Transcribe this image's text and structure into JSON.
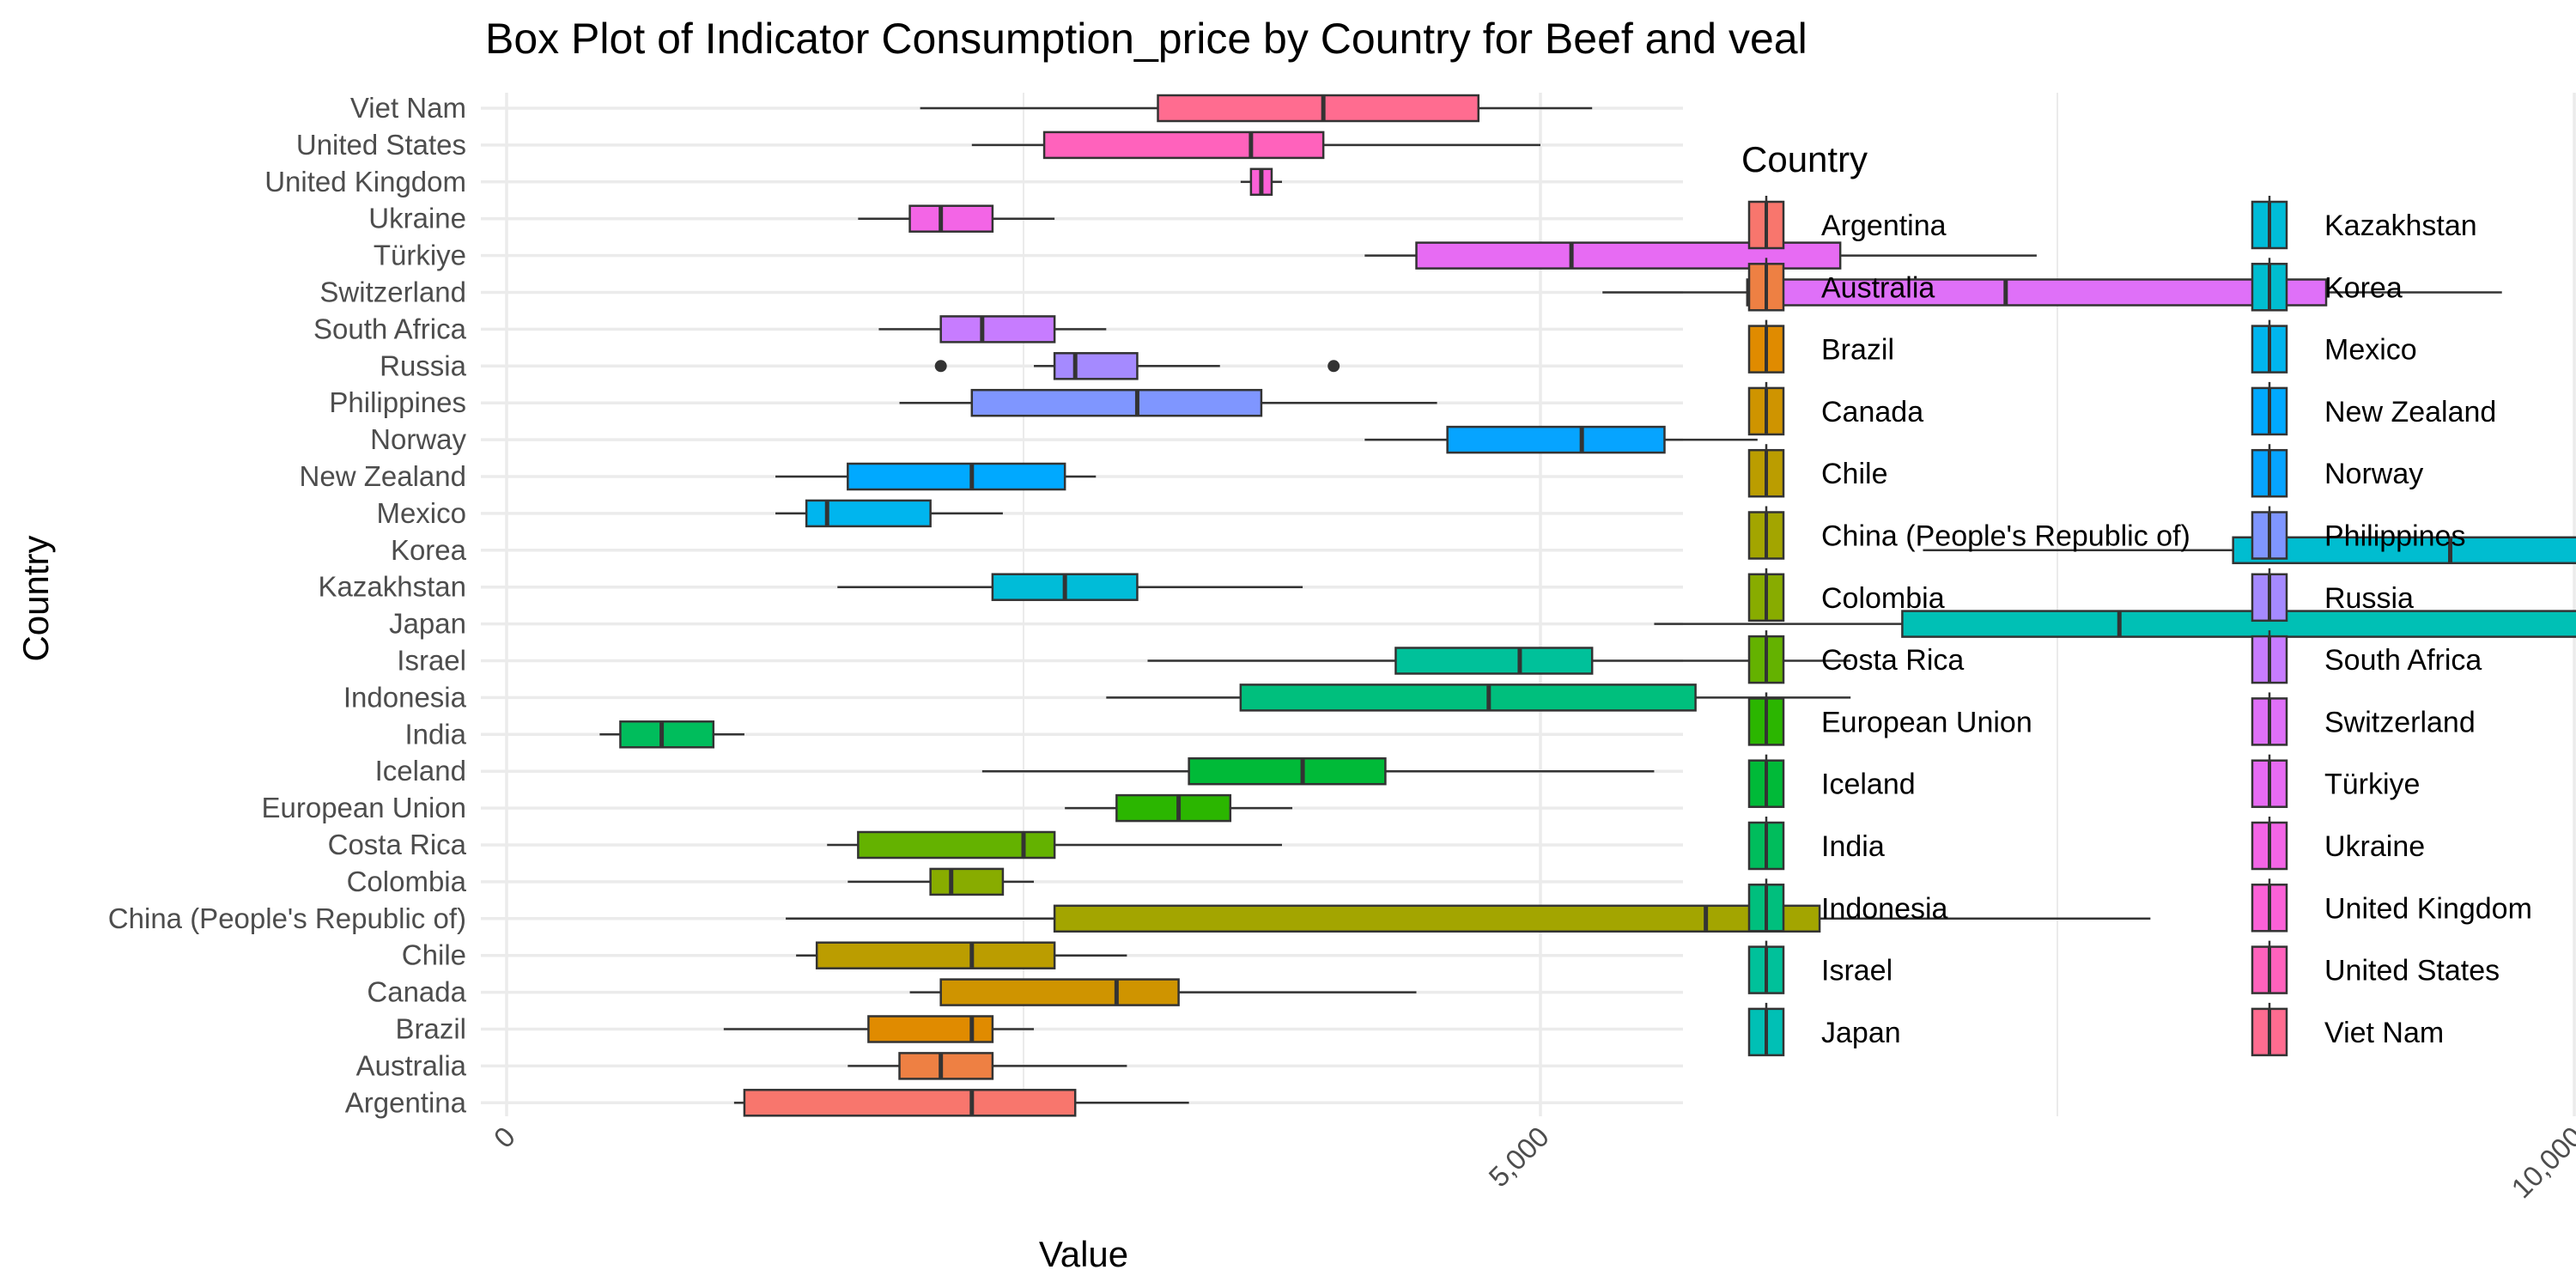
{
  "chart_data": {
    "type": "boxplot",
    "orientation": "horizontal",
    "title": "Box Plot of Indicator Consumption_price by Country for Beef and veal",
    "xlabel": "Value",
    "ylabel": "Country",
    "xlim": [
      -200,
      13800
    ],
    "x_ticks": [
      0,
      5000,
      10000
    ],
    "x_tick_labels": [
      "0",
      "5,000",
      "10,000"
    ],
    "grid": "on",
    "legend_title": "Country",
    "legend_position": "right",
    "series": [
      {
        "name": "Argentina",
        "color": "#F8766D",
        "min": 1100,
        "q1": 1150,
        "median": 2250,
        "q3": 2750,
        "max": 3300,
        "outliers": []
      },
      {
        "name": "Australia",
        "color": "#EE8043",
        "min": 1650,
        "q1": 1900,
        "median": 2100,
        "q3": 2350,
        "max": 3000,
        "outliers": []
      },
      {
        "name": "Brazil",
        "color": "#E08B00",
        "min": 1050,
        "q1": 1750,
        "median": 2250,
        "q3": 2350,
        "max": 2550,
        "outliers": []
      },
      {
        "name": "Canada",
        "color": "#CF9400",
        "min": 1950,
        "q1": 2100,
        "median": 2950,
        "q3": 3250,
        "max": 4400,
        "outliers": []
      },
      {
        "name": "Chile",
        "color": "#BB9D00",
        "min": 1400,
        "q1": 1500,
        "median": 2250,
        "q3": 2650,
        "max": 3000,
        "outliers": []
      },
      {
        "name": "China (People's Republic of)",
        "color": "#A3A500",
        "min": 1350,
        "q1": 2650,
        "median": 5800,
        "q3": 6350,
        "max": 7950,
        "outliers": []
      },
      {
        "name": "Colombia",
        "color": "#88AC00",
        "min": 1650,
        "q1": 2050,
        "median": 2150,
        "q3": 2400,
        "max": 2550,
        "outliers": []
      },
      {
        "name": "Costa Rica",
        "color": "#64B200",
        "min": 1550,
        "q1": 1700,
        "median": 2500,
        "q3": 2650,
        "max": 3750,
        "outliers": []
      },
      {
        "name": "European Union",
        "color": "#2BB600",
        "min": 2700,
        "q1": 2950,
        "median": 3250,
        "q3": 3500,
        "max": 3800,
        "outliers": []
      },
      {
        "name": "Iceland",
        "color": "#00BA38",
        "min": 2300,
        "q1": 3300,
        "median": 3850,
        "q3": 4250,
        "max": 5550,
        "outliers": []
      },
      {
        "name": "India",
        "color": "#00BD5C",
        "min": 450,
        "q1": 550,
        "median": 750,
        "q3": 1000,
        "max": 1150,
        "outliers": []
      },
      {
        "name": "Indonesia",
        "color": "#00BF7D",
        "min": 2900,
        "q1": 3550,
        "median": 4750,
        "q3": 5750,
        "max": 6500,
        "outliers": []
      },
      {
        "name": "Israel",
        "color": "#00C19A",
        "min": 3100,
        "q1": 4300,
        "median": 4900,
        "q3": 5250,
        "max": 6500,
        "outliers": []
      },
      {
        "name": "Japan",
        "color": "#00C0B5",
        "min": 5550,
        "q1": 6750,
        "median": 7800,
        "q3": 11350,
        "max": 12550,
        "outliers": []
      },
      {
        "name": "Kazakhstan",
        "color": "#00BCD8",
        "min": 1600,
        "q1": 2350,
        "median": 2700,
        "q3": 3050,
        "max": 3850,
        "outliers": []
      },
      {
        "name": "Korea",
        "color": "#00BDD0",
        "min": 6850,
        "q1": 8350,
        "median": 9400,
        "q3": 11900,
        "max": 13350,
        "outliers": []
      },
      {
        "name": "Mexico",
        "color": "#00B5EE",
        "min": 1300,
        "q1": 1450,
        "median": 1550,
        "q3": 2050,
        "max": 2400,
        "outliers": []
      },
      {
        "name": "New Zealand",
        "color": "#00A9FF",
        "min": 1300,
        "q1": 1650,
        "median": 2250,
        "q3": 2700,
        "max": 2850,
        "outliers": []
      },
      {
        "name": "Norway",
        "color": "#06A4FF",
        "min": 4150,
        "q1": 4550,
        "median": 5200,
        "q3": 5600,
        "max": 6050,
        "outliers": []
      },
      {
        "name": "Philippines",
        "color": "#7F96FF",
        "min": 1900,
        "q1": 2250,
        "median": 3050,
        "q3": 3650,
        "max": 4500,
        "outliers": []
      },
      {
        "name": "Russia",
        "color": "#A58AFF",
        "min": 2550,
        "q1": 2650,
        "median": 2750,
        "q3": 3050,
        "max": 3450,
        "outliers": [
          2100,
          4000
        ]
      },
      {
        "name": "South Africa",
        "color": "#C77CFF",
        "min": 1800,
        "q1": 2100,
        "median": 2300,
        "q3": 2650,
        "max": 2900,
        "outliers": []
      },
      {
        "name": "Switzerland",
        "color": "#DF70F8",
        "min": 5300,
        "q1": 6000,
        "median": 7250,
        "q3": 8800,
        "max": 9650,
        "outliers": []
      },
      {
        "name": "Türkiye",
        "color": "#E76BF3",
        "min": 4150,
        "q1": 4400,
        "median": 5150,
        "q3": 6450,
        "max": 7400,
        "outliers": []
      },
      {
        "name": "Ukraine",
        "color": "#F365E6",
        "min": 1700,
        "q1": 1950,
        "median": 2100,
        "q3": 2350,
        "max": 2650,
        "outliers": []
      },
      {
        "name": "United Kingdom",
        "color": "#FB61D7",
        "min": 3550,
        "q1": 3600,
        "median": 3650,
        "q3": 3700,
        "max": 3750,
        "outliers": []
      },
      {
        "name": "United States",
        "color": "#FF62BC",
        "min": 2250,
        "q1": 2600,
        "median": 3600,
        "q3": 3950,
        "max": 5000,
        "outliers": []
      },
      {
        "name": "Viet Nam",
        "color": "#FF6C90",
        "min": 2000,
        "q1": 3150,
        "median": 3950,
        "q3": 4700,
        "max": 5250,
        "outliers": []
      }
    ]
  }
}
